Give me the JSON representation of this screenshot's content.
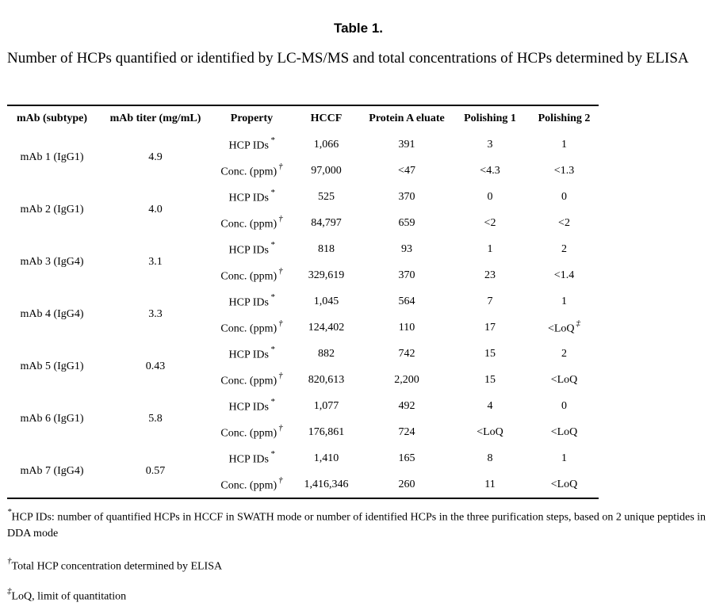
{
  "title": "Table 1.",
  "caption": "Number of HCPs quantified or identified by LC-MS/MS and total concentrations of HCPs determined by ELISA",
  "columns": [
    "mAb (subtype)",
    "mAb titer (mg/mL)",
    "Property",
    "HCCF",
    "Protein A eluate",
    "Polishing 1",
    "Polishing 2"
  ],
  "property_labels": {
    "ids": "HCP IDs",
    "ids_mark": "*",
    "conc": "Conc. (ppm)",
    "conc_mark": "†"
  },
  "rows": [
    {
      "mab": "mAb 1 (IgG1)",
      "titer": "4.9",
      "ids": [
        "1,066",
        "391",
        "3",
        "1"
      ],
      "conc": [
        "97,000",
        "<47",
        "<4.3",
        "<1.3"
      ]
    },
    {
      "mab": "mAb 2 (IgG1)",
      "titer": "4.0",
      "ids": [
        "525",
        "370",
        "0",
        "0"
      ],
      "conc": [
        "84,797",
        "659",
        "<2",
        "<2"
      ]
    },
    {
      "mab": "mAb 3 (IgG4)",
      "titer": "3.1",
      "ids": [
        "818",
        "93",
        "1",
        "2"
      ],
      "conc": [
        "329,619",
        "370",
        "23",
        "<1.4"
      ]
    },
    {
      "mab": "mAb 4 (IgG4)",
      "titer": "3.3",
      "ids": [
        "1,045",
        "564",
        "7",
        "1"
      ],
      "conc": [
        "124,402",
        "110",
        "17",
        "<LoQ"
      ],
      "conc_last_mark": "‡"
    },
    {
      "mab": "mAb 5 (IgG1)",
      "titer": "0.43",
      "ids": [
        "882",
        "742",
        "15",
        "2"
      ],
      "conc": [
        "820,613",
        "2,200",
        "15",
        "<LoQ"
      ]
    },
    {
      "mab": "mAb 6 (IgG1)",
      "titer": "5.8",
      "ids": [
        "1,077",
        "492",
        "4",
        "0"
      ],
      "conc": [
        "176,861",
        "724",
        "<LoQ",
        "<LoQ"
      ]
    },
    {
      "mab": "mAb 7 (IgG4)",
      "titer": "0.57",
      "ids": [
        "1,410",
        "165",
        "8",
        "1"
      ],
      "conc": [
        "1,416,346",
        "260",
        "11",
        "<LoQ"
      ]
    }
  ],
  "footnotes": [
    {
      "mark": "*",
      "text": "HCP IDs: number of quantified HCPs in HCCF in SWATH mode or number of identified HCPs in the three purification steps, based on 2 unique peptides in DDA mode"
    },
    {
      "mark": "†",
      "text": "Total HCP concentration determined by ELISA"
    },
    {
      "mark": "‡",
      "text": "LoQ, limit of quantitation"
    }
  ]
}
